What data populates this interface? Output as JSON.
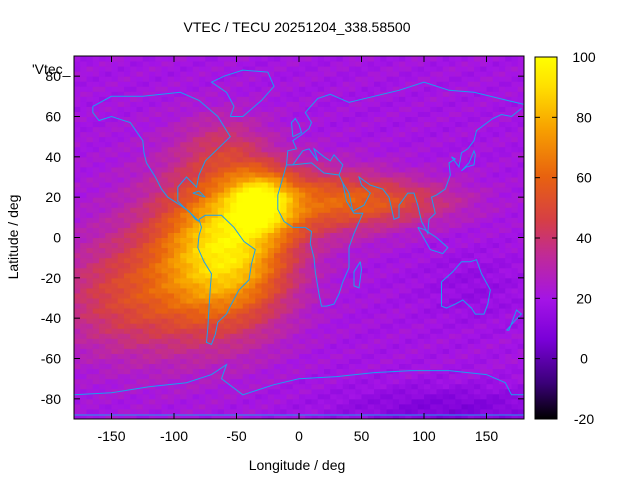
{
  "chart_data": {
    "type": "heatmap",
    "title": "VTEC / TECU 20251204_338.58500",
    "xlabel": "Longitude / deg",
    "ylabel": "Latitude / deg",
    "xlim": [
      -180,
      180
    ],
    "ylim": [
      -90,
      90
    ],
    "xticks": [
      "-150",
      "-100",
      "-50",
      "0",
      "50",
      "100",
      "150"
    ],
    "xtick_values": [
      -150,
      -100,
      -50,
      0,
      50,
      100,
      150
    ],
    "yticks": [
      "80",
      "60",
      "40",
      "20",
      "0",
      "-20",
      "-40",
      "-60",
      "-80"
    ],
    "ytick_values": [
      80,
      60,
      40,
      20,
      0,
      -20,
      -40,
      -60,
      -80
    ],
    "legend_entry": "'Vtec_",
    "colorbar": {
      "min": -20,
      "max": 100,
      "ticks": [
        "100",
        "80",
        "60",
        "40",
        "20",
        "0",
        "-20"
      ],
      "tick_values": [
        100,
        80,
        60,
        40,
        20,
        0,
        -20
      ],
      "palette": [
        "#000000",
        "#3b0079",
        "#7a00d8",
        "#a414e6",
        "#c02a98",
        "#d63f45",
        "#e8620f",
        "#f7a000",
        "#ffe000",
        "#ffff00"
      ]
    },
    "background_vtec": 20,
    "features": [
      {
        "name": "south-america-peak",
        "lon": -50,
        "lat": -5,
        "vtec": 87
      },
      {
        "name": "atlantic-peak",
        "lon": -30,
        "lat": 18,
        "vtec": 96
      },
      {
        "name": "equatorial-anomaly-north",
        "lon": -10,
        "lat": 16,
        "vtec": 55
      },
      {
        "name": "indian-ocean-band",
        "lon": 80,
        "lat": 18,
        "vtec": 48
      },
      {
        "name": "south-pacific-tail",
        "lon": -130,
        "lat": -30,
        "vtec": 45
      },
      {
        "name": "southern-trough",
        "lon": 120,
        "lat": -85,
        "vtec": 5
      }
    ],
    "coastline_color": "#1aa0f0"
  }
}
